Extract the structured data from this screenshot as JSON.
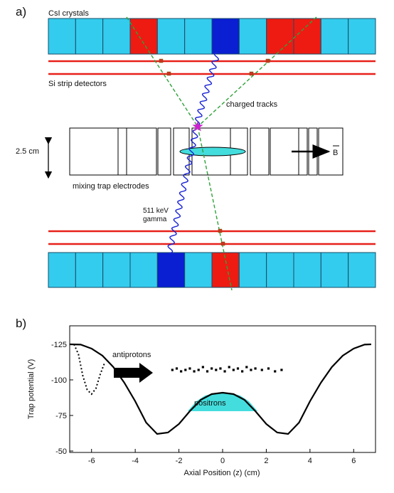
{
  "panel_a": {
    "label": "a)",
    "csi_label": "CsI crystals",
    "si_label": "Si strip detectors",
    "tracks_label": "charged tracks",
    "size_label": "2.5 cm",
    "electrodes_label": "mixing trap electrodes",
    "gamma_label_1": "511 keV",
    "gamma_label_2": "gamma",
    "field_label": "B",
    "colors": {
      "crystal": "#33ccee",
      "hit_gamma": "#0a1ed2",
      "hit_charged": "#ee1b12",
      "si_line": "#e8201a",
      "track": "#2fa23a",
      "gamma_wave": "#1822d8",
      "vertex": "#cc22cc",
      "positron_cloud": "#44dddd"
    },
    "top_row_hits": [
      "none",
      "none",
      "none",
      "charged",
      "none",
      "none",
      "gamma",
      "none",
      "charged",
      "charged",
      "none",
      "none"
    ],
    "bottom_row_hits": [
      "none",
      "none",
      "none",
      "none",
      "gamma",
      "none",
      "charged",
      "none",
      "none",
      "none",
      "none",
      "none"
    ]
  },
  "panel_b": {
    "label": "b)",
    "ylabel": "Trap potential (V)",
    "xlabel": "Axial Position (z) (cm)",
    "antiprotons_label": "antiprotons",
    "positrons_label": "positrons"
  },
  "chart_data": {
    "type": "line",
    "title": "",
    "xlabel": "Axial Position (z) (cm)",
    "ylabel": "Trap potential (V)",
    "xlim": [
      -7,
      7
    ],
    "ylim": [
      -125,
      -50
    ],
    "y_axis_inverted": true,
    "x_ticks": [
      -6,
      -4,
      -2,
      0,
      2,
      4,
      6
    ],
    "y_ticks": [
      -125,
      -100,
      -75,
      -50
    ],
    "series": [
      {
        "name": "",
        "style": "solid",
        "x": [
          -7.0,
          -6.5,
          -6.0,
          -5.5,
          -5.0,
          -4.5,
          -4.0,
          -3.5,
          -3.0,
          -2.5,
          -2.0,
          -1.5,
          -1.0,
          -0.5,
          0.0,
          0.5,
          1.0,
          1.5,
          2.0,
          2.5,
          3.0,
          3.5,
          4.0,
          4.5,
          5.0,
          5.5,
          6.0,
          6.5,
          6.8
        ],
        "y": [
          -125,
          -124.8,
          -122,
          -117,
          -109,
          -98,
          -85,
          -70,
          -62,
          -63,
          -69,
          -78,
          -86,
          -90,
          -91,
          -90,
          -86,
          -78,
          -69,
          -63,
          -62,
          -70,
          -85,
          -98,
          -109,
          -117,
          -122,
          -124.8,
          -125
        ]
      },
      {
        "name": "",
        "style": "dotted",
        "x": [
          -6.8,
          -6.6,
          -6.4,
          -6.2,
          -6.0,
          -5.8,
          -5.6,
          -5.4
        ],
        "y": [
          -125,
          -118,
          -103,
          -93,
          -90,
          -94,
          -104,
          -112
        ]
      },
      {
        "name": "",
        "style": "scatter",
        "x": [
          -2.3,
          -2.1,
          -1.9,
          -1.7,
          -1.5,
          -1.3,
          -1.1,
          -0.9,
          -0.7,
          -0.5,
          -0.3,
          -0.1,
          0.1,
          0.3,
          0.5,
          0.7,
          0.9,
          1.1,
          1.3,
          1.5,
          1.8,
          2.1,
          2.4,
          2.7
        ],
        "y": [
          -107,
          -108,
          -106,
          -107,
          -108,
          -106,
          -107,
          -109,
          -106,
          -108,
          -107,
          -108,
          -106,
          -109,
          -107,
          -108,
          -106,
          -109,
          -107,
          -108,
          -107,
          -108,
          -106,
          -107
        ]
      },
      {
        "name": "",
        "style": "fill",
        "x": [
          -1.6,
          -1.2,
          -0.8,
          -0.4,
          0.0,
          0.4,
          0.8,
          1.2,
          1.6
        ],
        "y": [
          -78,
          -85,
          -89,
          -90.5,
          -91,
          -90.5,
          -89,
          -85,
          -78
        ]
      }
    ],
    "annotations": [
      "antiprotons",
      "positrons"
    ]
  }
}
